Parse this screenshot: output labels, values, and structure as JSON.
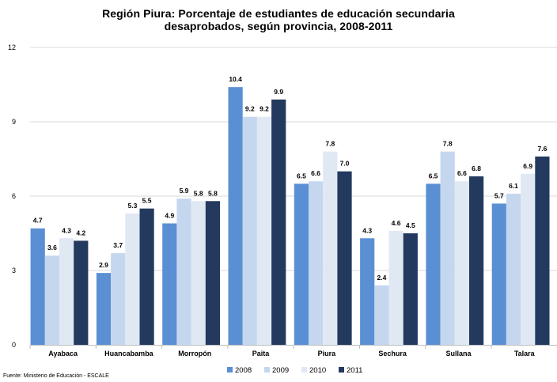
{
  "chart_data": {
    "type": "bar",
    "title_lines": [
      "Región Piura: Porcentaje de estudiantes de educación secundaria",
      "desaprobados, según provincia, 2008-2011"
    ],
    "xlabel": "",
    "ylabel": "",
    "ylim": [
      0,
      12
    ],
    "yticks": [
      0,
      3,
      6,
      9,
      12
    ],
    "grid": true,
    "legend_position": "bottom",
    "categories": [
      "Ayabaca",
      "Huancabamba",
      "Morropón",
      "Paita",
      "Piura",
      "Sechura",
      "Sullana",
      "Talara"
    ],
    "series": [
      {
        "name": "2008",
        "color": "#5b8fd4",
        "values": [
          4.7,
          2.9,
          4.9,
          10.4,
          6.5,
          4.3,
          6.5,
          5.7
        ]
      },
      {
        "name": "2009",
        "color": "#c5d7ef",
        "values": [
          3.6,
          3.7,
          5.9,
          9.2,
          6.6,
          2.4,
          7.8,
          6.1
        ]
      },
      {
        "name": "2010",
        "color": "#e0e8f4",
        "values": [
          4.3,
          5.3,
          5.8,
          9.2,
          7.8,
          4.6,
          6.6,
          6.9
        ]
      },
      {
        "name": "2011",
        "color": "#233a5e",
        "values": [
          4.2,
          5.5,
          5.8,
          9.9,
          7.0,
          4.5,
          6.8,
          7.6
        ]
      }
    ],
    "data_labels": [
      [
        "4.7",
        "2.9",
        "4.9",
        "10.4",
        "6.5",
        "4.3",
        "6.5",
        "5.7"
      ],
      [
        "3.6",
        "3.7",
        "5.9",
        "9.2",
        "6.6",
        "2.4",
        "7.8",
        "6.1"
      ],
      [
        "4.3",
        "5.3",
        "5.8",
        "9.2",
        "7.8",
        "4.6",
        "6.6",
        "6.9"
      ],
      [
        "4.2",
        "5.5",
        "5.8",
        "9.9",
        "7.0",
        "4.5",
        "6.8",
        "7.6"
      ]
    ],
    "source": "Fuente: Ministerio de Educación - ESCALE"
  }
}
